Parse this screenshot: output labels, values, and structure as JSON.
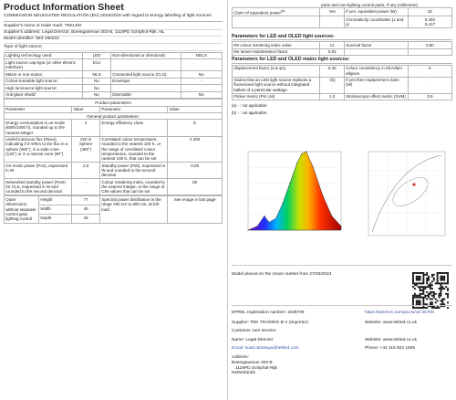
{
  "title": "Product Information Sheet",
  "regulation": "COMMISSION DELEGATED REGULATION (EU) 2019/2015 with regard to energy labelling of light sources",
  "supplier_name": "Supplier's name or trade mark: TEKLED",
  "supplier_address": "Supplier's address: Legal Director, Boeingavenue 303-B, 1119PD Schiphol-Rijk, NL",
  "model_identifier": "Model identifier: 583-150222",
  "type_header": "Type of light source:",
  "type_rows": [
    [
      "Lighting technology used:",
      "LED",
      "Non-directional or directional:",
      "NDLS"
    ],
    [
      "Light source cap-type (or other electric interface)",
      "E14",
      "",
      ""
    ],
    [
      "Mains or non-mains:",
      "MLS",
      "Connected light source (CLS):",
      "No"
    ],
    [
      "Colour-tuneable light source:",
      "No",
      "Envelope:",
      "-"
    ],
    [
      "High luminance light source:",
      "No",
      "",
      ""
    ],
    [
      "Anti-glare shield:",
      "No",
      "Dimmable:",
      "No"
    ]
  ],
  "params_header": "Product parameters",
  "col_headers": [
    "Parameter",
    "Value",
    "Parameter",
    "Value"
  ],
  "general_header": "General product parameters:",
  "general_rows": [
    [
      "Energy consumption in on-mode (kWh/1000 h), rounded up to the nearest integer",
      "2",
      "Energy efficiency class",
      "E"
    ],
    [
      "Useful luminous flux (Φuse), indicating if it refers to the flux in a sphere (360°), in a wide cone (120°) or in a narrow cone (90°)",
      "220 in Sphere (360°)",
      "Correlated colour temperature, rounded to the nearest 100 K, or the range of correlated colour temperatures, rounded to the nearest 100 K, that can be set",
      "2 400"
    ],
    [
      "On-mode power (Pon), expressed in W",
      "2,0",
      "Standby power (Psb), expressed in W and rounded to the second decimal",
      "0,00"
    ],
    [
      "Networked standby power (Pnet) for CLS, expressed in W and rounded to the second decimal",
      "-",
      "Colour rendering index, rounded to the nearest integer, or the range of CRI-values that can be set",
      "80"
    ]
  ],
  "dims": {
    "label": "Outer dimensions without separate control gear, lighting control",
    "unit_note": "",
    "rows": [
      [
        "Height",
        "77"
      ],
      [
        "Width",
        "45"
      ],
      [
        "Depth",
        "45"
      ]
    ],
    "spectral_label": "Spectral power distribution in the range 250 nm to 800 nm, at full-load",
    "spectral_value": "See image in last page"
  },
  "right_top": {
    "fragment": "parts and non-lighting control parts, if any (millimetre)",
    "claim_label": "Claim of equivalent power",
    "claim_value": "Yes",
    "equiv_label": "If yes, equivalent power (W)",
    "equiv_value": "22",
    "chroma_label": "Chromaticity coordinates (x and y)",
    "chroma_values": "0,492\n0,417"
  },
  "led_header": "Parameters for LED and OLED light sources:",
  "led_rows": [
    [
      "R9 colour rendering index value",
      "12",
      "Survival factor",
      "0,90"
    ],
    [
      "the lumen maintenance factor",
      "0,93",
      "",
      ""
    ]
  ],
  "mains_header": "Parameters for LED and OLED mains light sources:",
  "mains_rows": [
    [
      "displacement factor (cos φ1)",
      "0,40",
      "Colour consistency in McAdam ellipses",
      "6"
    ],
    [
      "Claims that an LED light source replaces a fluorescent light source without integrated ballast of a particular wattage.",
      "-(b)",
      "If yes then replacement claim (W)",
      "-"
    ],
    [
      "Flicker metric (Pst LM)",
      "1,0",
      "Stroboscopic effect metric (SVM)",
      "0,9"
    ]
  ],
  "footnotes": [
    "(a) - : not applicable;",
    "(b) - : not applicable;"
  ],
  "chart_data": {
    "type": "line",
    "title": "",
    "xlabel": "",
    "ylabel": "",
    "x": [
      380,
      420,
      450,
      470,
      500,
      530,
      560,
      590,
      610,
      630,
      660,
      700,
      740,
      780
    ],
    "values": [
      0.0,
      0.05,
      0.18,
      0.1,
      0.15,
      0.35,
      0.6,
      0.85,
      0.97,
      1.0,
      0.8,
      0.45,
      0.18,
      0.05
    ],
    "xlim": [
      380,
      780
    ],
    "ylim": [
      0,
      1.0
    ],
    "grid": true
  },
  "placed_on_market": "Model placed on the Union market from 27/03/2023",
  "eprel_label": "EPREL registration number: 1536709",
  "eprel_link": "https://eprel.ec.europa.eu/15 36709",
  "supplier_line": "Supplier: TEK TRADING B.V (Importer)",
  "supplier_site": "Website: www.tekled.co.uk",
  "customer_care": "Customer care service:",
  "care_name": "Name: Legal Director",
  "care_site": "Website: www.tekled.co.uk",
  "care_email": "Email: suad.oktokaya@tekled.com",
  "care_phone": "Phone: +44 115 922 1605",
  "address_label": "Address:",
  "address_lines": [
    "Boeingavenue 303 B",
    "1119PD Schiphol-Rijk",
    "Netherlands"
  ]
}
